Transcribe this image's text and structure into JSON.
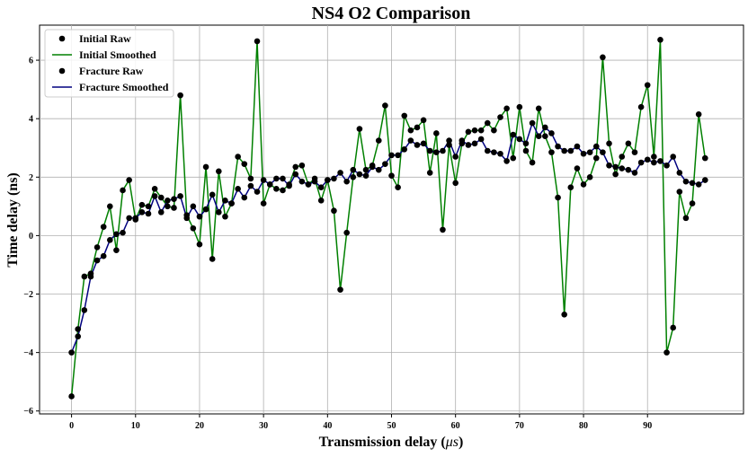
{
  "chart_data": {
    "type": "line",
    "title": "NS4 O2 Comparison",
    "xlabel": "Transmission delay (",
    "xlabel_unit_symbol": "μs",
    "xlabel_close": ")",
    "ylabel": "Time delay (ns)",
    "xlim": [
      -5,
      105
    ],
    "ylim": [
      -6.1,
      7.2
    ],
    "grid": true,
    "legend_position": "top-left",
    "x_ticks": [
      0,
      10,
      20,
      30,
      40,
      50,
      60,
      70,
      80,
      90
    ],
    "y_ticks": [
      -6,
      -4,
      -2,
      0,
      2,
      4,
      6
    ],
    "x": [
      0,
      1,
      2,
      3,
      4,
      5,
      6,
      7,
      8,
      9,
      10,
      11,
      12,
      13,
      14,
      15,
      16,
      17,
      18,
      19,
      20,
      21,
      22,
      23,
      24,
      25,
      26,
      27,
      28,
      29,
      30,
      31,
      32,
      33,
      34,
      35,
      36,
      37,
      38,
      39,
      40,
      41,
      42,
      43,
      44,
      45,
      46,
      47,
      48,
      49,
      50,
      51,
      52,
      53,
      54,
      55,
      56,
      57,
      58,
      59,
      60,
      61,
      62,
      63,
      64,
      65,
      66,
      67,
      68,
      69,
      70,
      71,
      72,
      73,
      74,
      75,
      76,
      77,
      78,
      79,
      80,
      81,
      82,
      83,
      84,
      85,
      86,
      87,
      88,
      89,
      90,
      91,
      92,
      93,
      94,
      95,
      96,
      97,
      98,
      99
    ],
    "series": [
      {
        "name": "Initial Raw",
        "kind": "points",
        "color": "#000000",
        "values": [
          -5.5,
          -3.2,
          -1.4,
          -1.3,
          -0.4,
          0.3,
          1.0,
          -0.5,
          1.55,
          1.9,
          0.55,
          1.05,
          1.0,
          1.6,
          1.3,
          1.0,
          0.95,
          4.8,
          0.7,
          0.25,
          -0.3,
          2.35,
          -0.8,
          2.2,
          0.65,
          1.1,
          2.7,
          2.45,
          1.95,
          6.65,
          1.1,
          1.75,
          1.6,
          1.55,
          1.75,
          2.35,
          2.4,
          1.75,
          1.95,
          1.2,
          1.9,
          0.85,
          -1.85,
          0.1,
          2.0,
          3.65,
          2.25,
          2.4,
          3.25,
          4.45,
          2.05,
          1.65,
          4.1,
          3.6,
          3.7,
          3.95,
          2.15,
          3.5,
          0.2,
          3.1,
          1.8,
          3.15,
          3.55,
          3.6,
          3.6,
          3.85,
          3.6,
          4.05,
          4.35,
          2.65,
          4.4,
          2.9,
          2.5,
          4.35,
          3.4,
          2.85,
          1.3,
          -2.7,
          1.65,
          2.3,
          1.75,
          2.0,
          2.65,
          6.1,
          3.15,
          2.1,
          2.7,
          3.15,
          2.85,
          4.4,
          5.15,
          2.7,
          6.7,
          -4.0,
          -3.15,
          1.5,
          0.6,
          1.1,
          4.15,
          2.65
        ]
      },
      {
        "name": "Initial Smoothed",
        "kind": "line",
        "color": "#008000",
        "values": [
          -5.5,
          -3.2,
          -1.4,
          -1.3,
          -0.4,
          0.3,
          1.0,
          -0.5,
          1.55,
          1.9,
          0.55,
          1.05,
          1.0,
          1.6,
          1.3,
          1.0,
          0.95,
          4.8,
          0.7,
          0.25,
          -0.3,
          2.35,
          -0.8,
          2.2,
          0.65,
          1.1,
          2.7,
          2.45,
          1.95,
          6.65,
          1.1,
          1.75,
          1.6,
          1.55,
          1.75,
          2.35,
          2.4,
          1.75,
          1.95,
          1.2,
          1.9,
          0.85,
          -1.85,
          0.1,
          2.0,
          3.65,
          2.25,
          2.4,
          3.25,
          4.45,
          2.05,
          1.65,
          4.1,
          3.6,
          3.7,
          3.95,
          2.15,
          3.5,
          0.2,
          3.1,
          1.8,
          3.15,
          3.55,
          3.6,
          3.6,
          3.85,
          3.6,
          4.05,
          4.35,
          2.65,
          4.4,
          2.9,
          2.5,
          4.35,
          3.4,
          2.85,
          1.3,
          -2.7,
          1.65,
          2.3,
          1.75,
          2.0,
          2.65,
          6.1,
          3.15,
          2.1,
          2.7,
          3.15,
          2.85,
          4.4,
          5.15,
          2.7,
          6.7,
          -4.0,
          -3.15,
          1.5,
          0.6,
          1.1,
          4.15,
          2.65
        ]
      },
      {
        "name": "Fracture Raw",
        "kind": "points",
        "color": "#000000",
        "values": [
          -4.0,
          -3.45,
          -2.55,
          -1.4,
          -0.85,
          -0.7,
          -0.15,
          0.05,
          0.1,
          0.6,
          0.6,
          0.8,
          0.75,
          1.35,
          0.8,
          1.2,
          1.25,
          1.35,
          0.6,
          1.0,
          0.65,
          0.9,
          1.4,
          0.8,
          1.2,
          1.1,
          1.6,
          1.3,
          1.7,
          1.5,
          1.9,
          1.75,
          1.95,
          1.95,
          1.7,
          2.1,
          1.85,
          1.75,
          1.85,
          1.65,
          1.9,
          1.95,
          2.15,
          1.85,
          2.25,
          2.1,
          2.05,
          2.35,
          2.25,
          2.45,
          2.75,
          2.75,
          2.95,
          3.25,
          3.1,
          3.15,
          2.9,
          2.85,
          2.9,
          3.25,
          2.7,
          3.25,
          3.1,
          3.15,
          3.3,
          2.9,
          2.85,
          2.8,
          2.55,
          3.45,
          3.3,
          3.15,
          3.85,
          3.4,
          3.7,
          3.5,
          3.05,
          2.9,
          2.9,
          3.05,
          2.8,
          2.85,
          3.05,
          2.85,
          2.4,
          2.35,
          2.3,
          2.25,
          2.15,
          2.5,
          2.6,
          2.5,
          2.55,
          2.4,
          2.7,
          2.15,
          1.85,
          1.8,
          1.75,
          1.9
        ]
      },
      {
        "name": "Fracture Smoothed",
        "kind": "line",
        "color": "#000080",
        "values": [
          -4.0,
          -3.45,
          -2.55,
          -1.4,
          -0.85,
          -0.7,
          -0.15,
          0.05,
          0.1,
          0.6,
          0.6,
          0.8,
          0.75,
          1.35,
          0.8,
          1.2,
          1.25,
          1.35,
          0.6,
          1.0,
          0.65,
          0.9,
          1.4,
          0.8,
          1.2,
          1.1,
          1.6,
          1.3,
          1.7,
          1.5,
          1.9,
          1.75,
          1.95,
          1.95,
          1.7,
          2.1,
          1.85,
          1.75,
          1.85,
          1.65,
          1.9,
          1.95,
          2.15,
          1.85,
          2.25,
          2.1,
          2.05,
          2.35,
          2.25,
          2.45,
          2.75,
          2.75,
          2.95,
          3.25,
          3.1,
          3.15,
          2.9,
          2.85,
          2.9,
          3.25,
          2.7,
          3.25,
          3.1,
          3.15,
          3.3,
          2.9,
          2.85,
          2.8,
          2.55,
          3.45,
          3.3,
          3.15,
          3.85,
          3.4,
          3.7,
          3.5,
          3.05,
          2.9,
          2.9,
          3.05,
          2.8,
          2.85,
          3.05,
          2.85,
          2.4,
          2.35,
          2.3,
          2.25,
          2.15,
          2.5,
          2.6,
          2.5,
          2.55,
          2.4,
          2.7,
          2.15,
          1.85,
          1.8,
          1.75,
          1.9
        ]
      }
    ]
  }
}
